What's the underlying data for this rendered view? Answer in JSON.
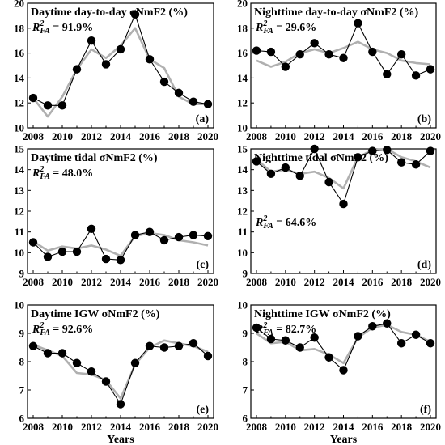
{
  "chart_data": [
    {
      "type": "line",
      "title": "Daytime day-to-day σNmF2 (%)",
      "r2_symbol": "R",
      "r2_sup": "2",
      "r2_sub": "FA",
      "r2_value": " = 91.9%",
      "panel_label": "(a)",
      "x": [
        2008,
        2009,
        2010,
        2011,
        2012,
        2013,
        2014,
        2015,
        2016,
        2017,
        2018,
        2019,
        2020
      ],
      "ylim": [
        10,
        20
      ],
      "yticks": [
        10,
        12,
        14,
        16,
        18,
        20
      ],
      "xlabel": "",
      "series": [
        {
          "values": [
            12.4,
            11.8,
            11.8,
            14.7,
            17.0,
            15.1,
            16.3,
            19.1,
            15.5,
            13.7,
            12.8,
            12.1,
            11.9
          ],
          "color": "#000000"
        },
        {
          "values": [
            12.4,
            10.9,
            12.5,
            14.7,
            16.3,
            15.6,
            16.6,
            18.0,
            15.5,
            14.8,
            12.5,
            11.9,
            11.9
          ],
          "color": "#b0b0b0"
        }
      ]
    },
    {
      "type": "line",
      "title": "Nighttime day-to-day σNmF2 (%)",
      "r2_symbol": "R",
      "r2_sup": "2",
      "r2_sub": "FA",
      "r2_value": " = 29.6%",
      "panel_label": "(b)",
      "x": [
        2008,
        2009,
        2010,
        2011,
        2012,
        2013,
        2014,
        2015,
        2016,
        2017,
        2018,
        2019,
        2020
      ],
      "ylim": [
        10,
        20
      ],
      "yticks": [
        10,
        12,
        14,
        16,
        18,
        20
      ],
      "xlabel": "",
      "series": [
        {
          "values": [
            16.2,
            16.1,
            14.9,
            15.9,
            16.8,
            15.9,
            15.6,
            18.4,
            16.1,
            14.3,
            15.9,
            14.2,
            14.7
          ],
          "color": "#000000"
        },
        {
          "values": [
            15.4,
            14.9,
            15.3,
            16.0,
            16.3,
            16.0,
            16.4,
            16.9,
            16.3,
            16.0,
            15.4,
            15.2,
            15.1
          ],
          "color": "#b0b0b0"
        }
      ]
    },
    {
      "type": "line",
      "title": "Daytime tidal σNmF2 (%)",
      "r2_symbol": "R",
      "r2_sup": "2",
      "r2_sub": "FA",
      "r2_value": " = 48.0%",
      "panel_label": "(c)",
      "x": [
        2008,
        2009,
        2010,
        2011,
        2012,
        2013,
        2014,
        2015,
        2016,
        2017,
        2018,
        2019,
        2020
      ],
      "ylim": [
        9,
        15
      ],
      "yticks": [
        9,
        10,
        11,
        12,
        13,
        14,
        15
      ],
      "xlabel": "",
      "series": [
        {
          "values": [
            10.5,
            9.8,
            10.05,
            10.05,
            11.15,
            9.7,
            9.65,
            10.85,
            11.0,
            10.6,
            10.75,
            10.85,
            10.8
          ],
          "color": "#000000"
        },
        {
          "values": [
            10.55,
            10.1,
            10.3,
            10.2,
            10.35,
            10.15,
            9.85,
            10.8,
            10.95,
            10.85,
            10.6,
            10.5,
            10.35
          ],
          "color": "#b0b0b0"
        }
      ]
    },
    {
      "type": "line",
      "title": "Nighttime tidal σNmF2 (%)",
      "r2_symbol": "R",
      "r2_sup": "2",
      "r2_sub": "FA",
      "r2_value": " = 64.6%",
      "panel_label": "(d)",
      "x": [
        2008,
        2009,
        2010,
        2011,
        2012,
        2013,
        2014,
        2015,
        2016,
        2017,
        2018,
        2019,
        2020
      ],
      "ylim": [
        9,
        15
      ],
      "yticks": [
        9,
        10,
        11,
        12,
        13,
        14,
        15
      ],
      "xlabel": "",
      "series": [
        {
          "values": [
            14.4,
            13.8,
            14.1,
            13.7,
            15.0,
            13.4,
            12.35,
            14.6,
            14.9,
            14.95,
            14.35,
            14.25,
            14.9
          ],
          "color": "#000000"
        },
        {
          "values": [
            14.5,
            13.9,
            14.0,
            13.8,
            13.9,
            13.6,
            13.1,
            14.6,
            14.95,
            15.0,
            14.6,
            14.4,
            14.1
          ],
          "color": "#b0b0b0"
        }
      ]
    },
    {
      "type": "line",
      "title": "Daytime IGW σNmF2 (%)",
      "r2_symbol": "R",
      "r2_sup": "2",
      "r2_sub": "FA",
      "r2_value": " = 92.6%",
      "panel_label": "(e)",
      "x": [
        2008,
        2009,
        2010,
        2011,
        2012,
        2013,
        2014,
        2015,
        2016,
        2017,
        2018,
        2019,
        2020
      ],
      "ylim": [
        6,
        10
      ],
      "yticks": [
        6,
        7,
        8,
        9,
        10
      ],
      "xlabel": "Years",
      "series": [
        {
          "values": [
            8.55,
            8.3,
            8.3,
            7.95,
            7.65,
            7.3,
            6.5,
            7.95,
            8.55,
            8.5,
            8.55,
            8.65,
            8.2
          ],
          "color": "#000000"
        },
        {
          "values": [
            8.6,
            8.4,
            8.2,
            7.6,
            7.55,
            7.35,
            6.7,
            7.9,
            8.5,
            8.75,
            8.65,
            8.55,
            8.35
          ],
          "color": "#b0b0b0"
        }
      ]
    },
    {
      "type": "line",
      "title": "Nighttime IGW σNmF2 (%)",
      "r2_symbol": "R",
      "r2_sup": "2",
      "r2_sub": "FA",
      "r2_value": " = 82.7%",
      "panel_label": "(f)",
      "x": [
        2008,
        2009,
        2010,
        2011,
        2012,
        2013,
        2014,
        2015,
        2016,
        2017,
        2018,
        2019,
        2020
      ],
      "ylim": [
        6,
        10
      ],
      "yticks": [
        6,
        7,
        8,
        9,
        10
      ],
      "xlabel": "Years",
      "series": [
        {
          "values": [
            9.2,
            8.8,
            8.75,
            8.5,
            8.85,
            8.15,
            7.7,
            8.9,
            9.25,
            9.35,
            8.65,
            8.95,
            8.65
          ],
          "color": "#000000"
        },
        {
          "values": [
            9.0,
            8.65,
            8.7,
            8.4,
            8.45,
            8.25,
            7.95,
            8.85,
            9.2,
            9.3,
            9.05,
            8.95,
            8.7
          ],
          "color": "#b0b0b0"
        }
      ]
    }
  ]
}
